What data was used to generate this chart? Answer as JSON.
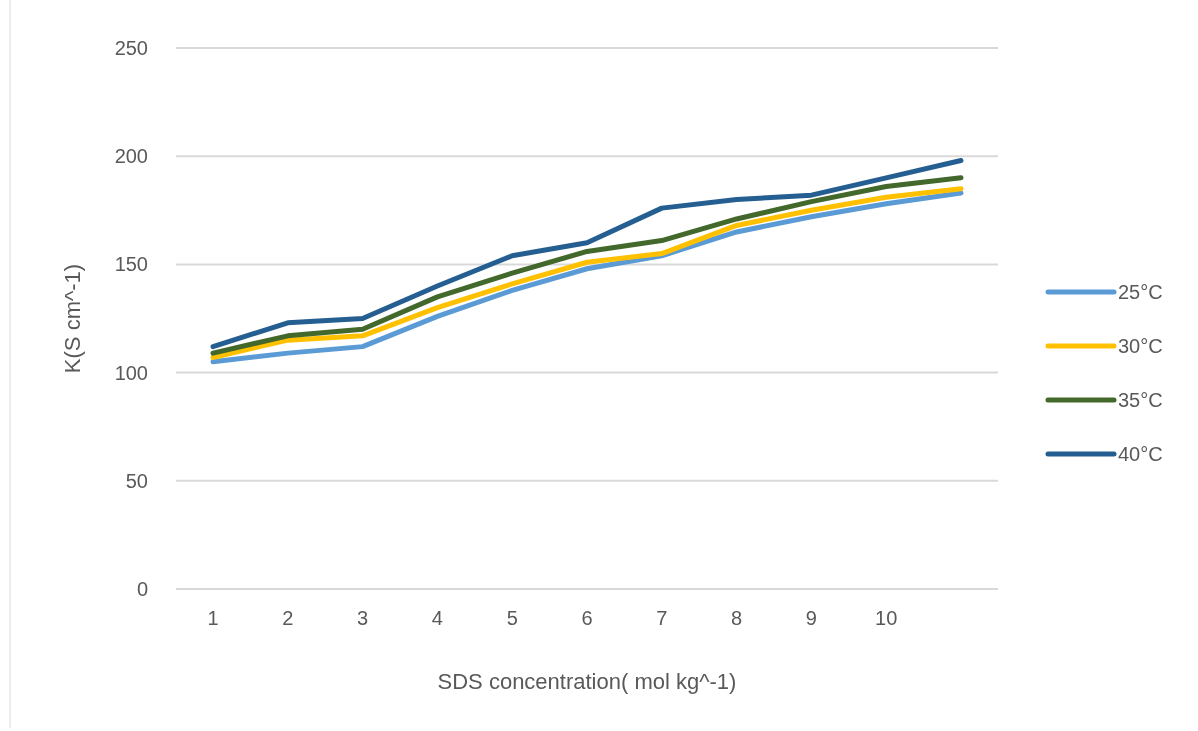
{
  "chart_data": {
    "type": "line",
    "xlabel": "SDS concentration( mol kg^-1)",
    "ylabel": "K(S cm^-1)",
    "categories": [
      "1",
      "2",
      "3",
      "4",
      "5",
      "6",
      "7",
      "8",
      "9",
      "10",
      null
    ],
    "series": [
      {
        "name": "25°C",
        "color": "#5b9bd5",
        "values": [
          105,
          109,
          112,
          126,
          138,
          148,
          154,
          165,
          172,
          178,
          183
        ]
      },
      {
        "name": "30°C",
        "color": "#ffc000",
        "values": [
          107,
          115,
          117,
          130,
          141,
          151,
          155,
          168,
          175,
          181,
          185
        ]
      },
      {
        "name": "35°C",
        "color": "#43682b",
        "values": [
          109,
          117,
          120,
          135,
          146,
          156,
          161,
          171,
          179,
          186,
          190
        ]
      },
      {
        "name": "40°C",
        "color": "#255e91",
        "values": [
          112,
          123,
          125,
          140,
          154,
          160,
          176,
          180,
          182,
          190,
          198
        ]
      }
    ],
    "ylim": [
      0,
      250
    ],
    "yticks": [
      0,
      50,
      100,
      150,
      200,
      250
    ],
    "grid": "y",
    "legend": "right",
    "marker": "none",
    "line_style": "solid"
  }
}
